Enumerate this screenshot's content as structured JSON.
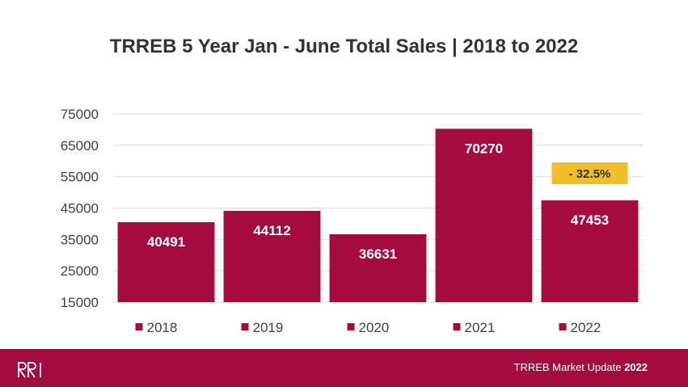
{
  "title": "TRREB 5 Year Jan - June Total Sales | 2018 to 2022",
  "chart_data": {
    "type": "bar",
    "categories": [
      "2018",
      "2019",
      "2020",
      "2021",
      "2022"
    ],
    "values": [
      40491,
      44112,
      36631,
      70270,
      47453
    ],
    "data_labels": [
      "40491",
      "44112",
      "36631",
      "70270",
      "47453"
    ],
    "y_ticks": [
      "75000",
      "65000",
      "55000",
      "45000",
      "35000",
      "25000",
      "15000"
    ],
    "ylim": [
      15000,
      75000
    ],
    "grid": true,
    "legend_placement": "bottom",
    "bar_color": "#a50b3f",
    "annotation": {
      "text": "- 32.5%",
      "category": "2022",
      "color": "#f0be2a"
    }
  },
  "footer": {
    "logo_text": "RRI",
    "text": "TRREB Market Update",
    "year": "2022",
    "background": "#a50b3f"
  }
}
